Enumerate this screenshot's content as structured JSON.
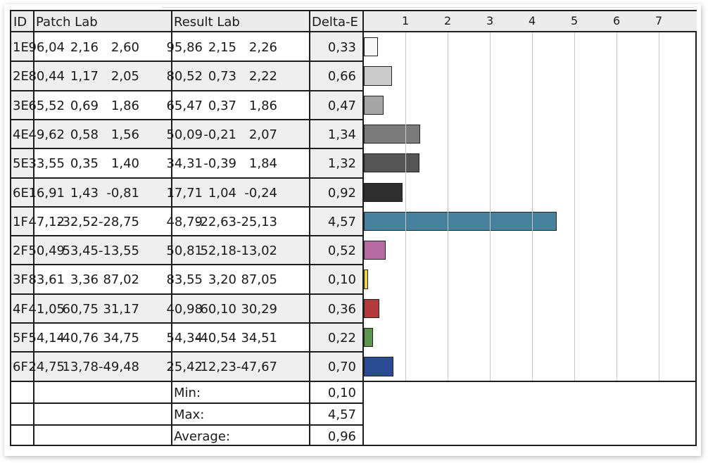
{
  "headers": {
    "id": "ID",
    "patch": "Patch Lab",
    "result": "Result Lab",
    "delta": "Delta-E"
  },
  "chart_data": {
    "type": "bar",
    "orientation": "horizontal",
    "xlim": [
      0,
      7.5
    ],
    "ticks": [
      "1",
      "2",
      "3",
      "4",
      "5",
      "6",
      "7"
    ],
    "grid": true,
    "rows": [
      {
        "id": "1E",
        "patch": [
          "96,04",
          "2,16",
          "2,60"
        ],
        "result": [
          "95,86",
          "2,15",
          "2,26"
        ],
        "delta_label": "0,33",
        "delta": 0.33,
        "color": "#f7f7f7"
      },
      {
        "id": "2E",
        "patch": [
          "80,44",
          "1,17",
          "2,05"
        ],
        "result": [
          "80,52",
          "0,73",
          "2,22"
        ],
        "delta_label": "0,66",
        "delta": 0.66,
        "color": "#cbcbcb"
      },
      {
        "id": "3E",
        "patch": [
          "65,52",
          "0,69",
          "1,86"
        ],
        "result": [
          "65,47",
          "0,37",
          "1,86"
        ],
        "delta_label": "0,47",
        "delta": 0.47,
        "color": "#a6a6a6"
      },
      {
        "id": "4E",
        "patch": [
          "49,62",
          "0,58",
          "1,56"
        ],
        "result": [
          "50,09",
          "-0,21",
          "2,07"
        ],
        "delta_label": "1,34",
        "delta": 1.34,
        "color": "#7b7b7b"
      },
      {
        "id": "5E",
        "patch": [
          "33,55",
          "0,35",
          "1,40"
        ],
        "result": [
          "34,31",
          "-0,39",
          "1,84"
        ],
        "delta_label": "1,32",
        "delta": 1.32,
        "color": "#555555"
      },
      {
        "id": "6E",
        "patch": [
          "16,91",
          "1,43",
          "-0,81"
        ],
        "result": [
          "17,71",
          "1,04",
          "-0,24"
        ],
        "delta_label": "0,92",
        "delta": 0.92,
        "color": "#2e2e2e"
      },
      {
        "id": "1F",
        "patch": [
          "47,12",
          "-32,52",
          "-28,75"
        ],
        "result": [
          "48,79",
          "-22,63",
          "-25,13"
        ],
        "delta_label": "4,57",
        "delta": 4.57,
        "color": "#4682a0"
      },
      {
        "id": "2F",
        "patch": [
          "50,49",
          "53,45",
          "-13,55"
        ],
        "result": [
          "50,81",
          "52,18",
          "-13,02"
        ],
        "delta_label": "0,52",
        "delta": 0.52,
        "color": "#b86aa3"
      },
      {
        "id": "3F",
        "patch": [
          "83,61",
          "3,36",
          "87,02"
        ],
        "result": [
          "83,55",
          "3,20",
          "87,05"
        ],
        "delta_label": "0,10",
        "delta": 0.1,
        "color": "#efd14a"
      },
      {
        "id": "4F",
        "patch": [
          "41,05",
          "60,75",
          "31,17"
        ],
        "result": [
          "40,98",
          "60,10",
          "30,29"
        ],
        "delta_label": "0,36",
        "delta": 0.36,
        "color": "#b23a3a"
      },
      {
        "id": "5F",
        "patch": [
          "54,14",
          "-40,76",
          "34,75"
        ],
        "result": [
          "54,34",
          "-40,54",
          "34,51"
        ],
        "delta_label": "0,22",
        "delta": 0.22,
        "color": "#5e9450"
      },
      {
        "id": "6F",
        "patch": [
          "24,75",
          "13,78",
          "-49,48"
        ],
        "result": [
          "25,42",
          "12,23",
          "-47,67"
        ],
        "delta_label": "0,70",
        "delta": 0.7,
        "color": "#2c4b95"
      }
    ]
  },
  "summary": [
    {
      "label": "Min:",
      "value": "0,10"
    },
    {
      "label": "Max:",
      "value": "4,57"
    },
    {
      "label": "Average:",
      "value": "0,96"
    }
  ]
}
